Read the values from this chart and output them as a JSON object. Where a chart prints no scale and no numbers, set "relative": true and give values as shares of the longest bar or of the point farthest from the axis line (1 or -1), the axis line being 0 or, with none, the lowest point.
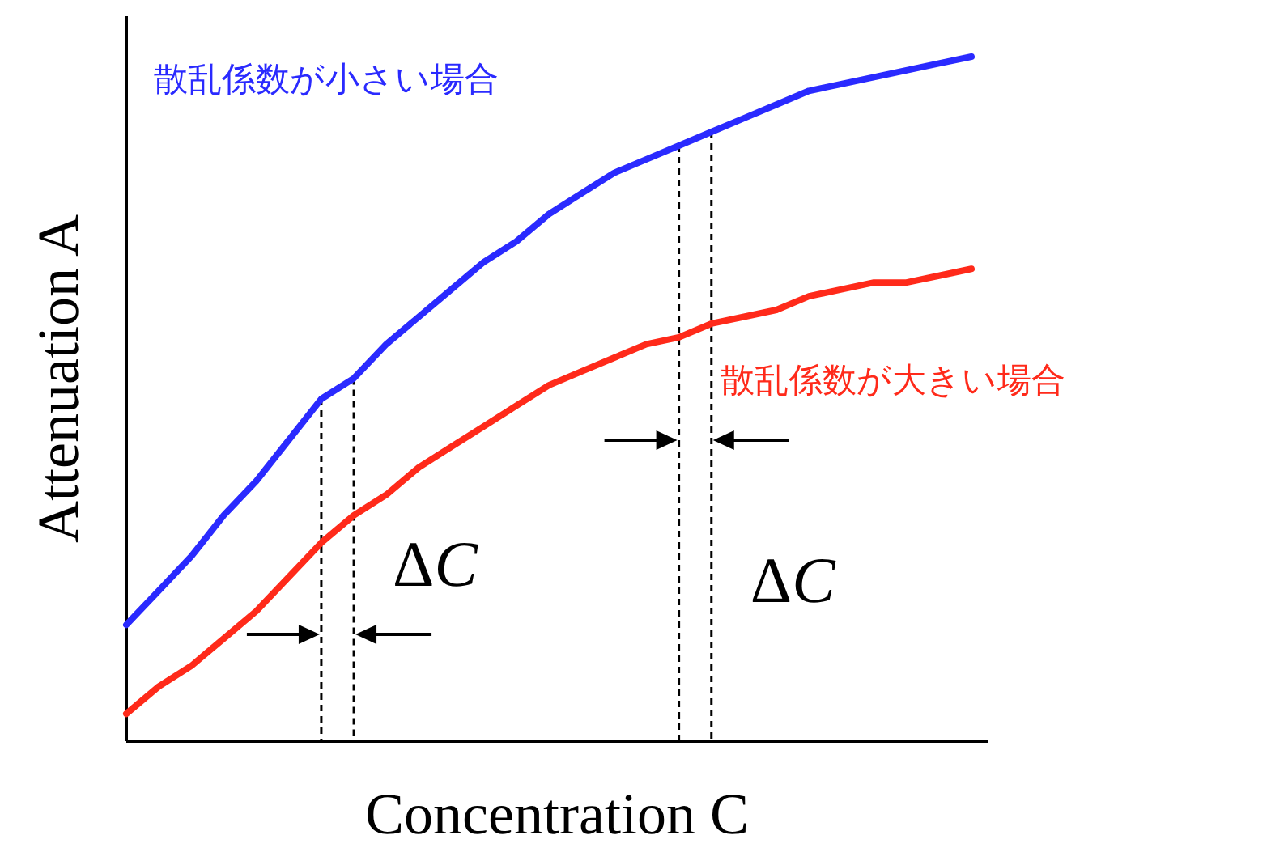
{
  "chart_data": {
    "type": "line",
    "relative": true,
    "xlabel": "Concentration C",
    "ylabel": "Attenuation A",
    "categories": [
      null,
      null,
      null,
      null,
      null,
      null,
      null,
      null,
      null,
      null,
      null,
      null,
      null,
      null,
      null,
      null,
      null,
      null,
      null,
      null,
      null,
      null,
      null,
      null,
      null,
      null,
      null
    ],
    "series": [
      {
        "name": "散乱係数が小さい場合",
        "color": "#2a2aff",
        "values": [
          0.17,
          0.22,
          0.27,
          0.33,
          0.38,
          0.44,
          0.5,
          0.53,
          0.58,
          0.62,
          0.66,
          0.7,
          0.73,
          0.77,
          0.8,
          0.83,
          0.85,
          0.87,
          0.89,
          0.91,
          0.93,
          0.95,
          0.96,
          0.97,
          0.98,
          0.99,
          1
        ]
      },
      {
        "name": "散乱係数が大きい場合",
        "color": "#ff2a1a",
        "values": [
          0.04,
          0.08,
          0.11,
          0.15,
          0.19,
          0.24,
          0.29,
          0.33,
          0.36,
          0.4,
          0.43,
          0.46,
          0.49,
          0.52,
          0.54,
          0.56,
          0.58,
          0.59,
          0.61,
          0.62,
          0.63,
          0.65,
          0.66,
          0.67,
          0.67,
          0.68,
          0.69
        ]
      }
    ],
    "annotations": [
      "ΔC",
      "ΔC"
    ]
  }
}
